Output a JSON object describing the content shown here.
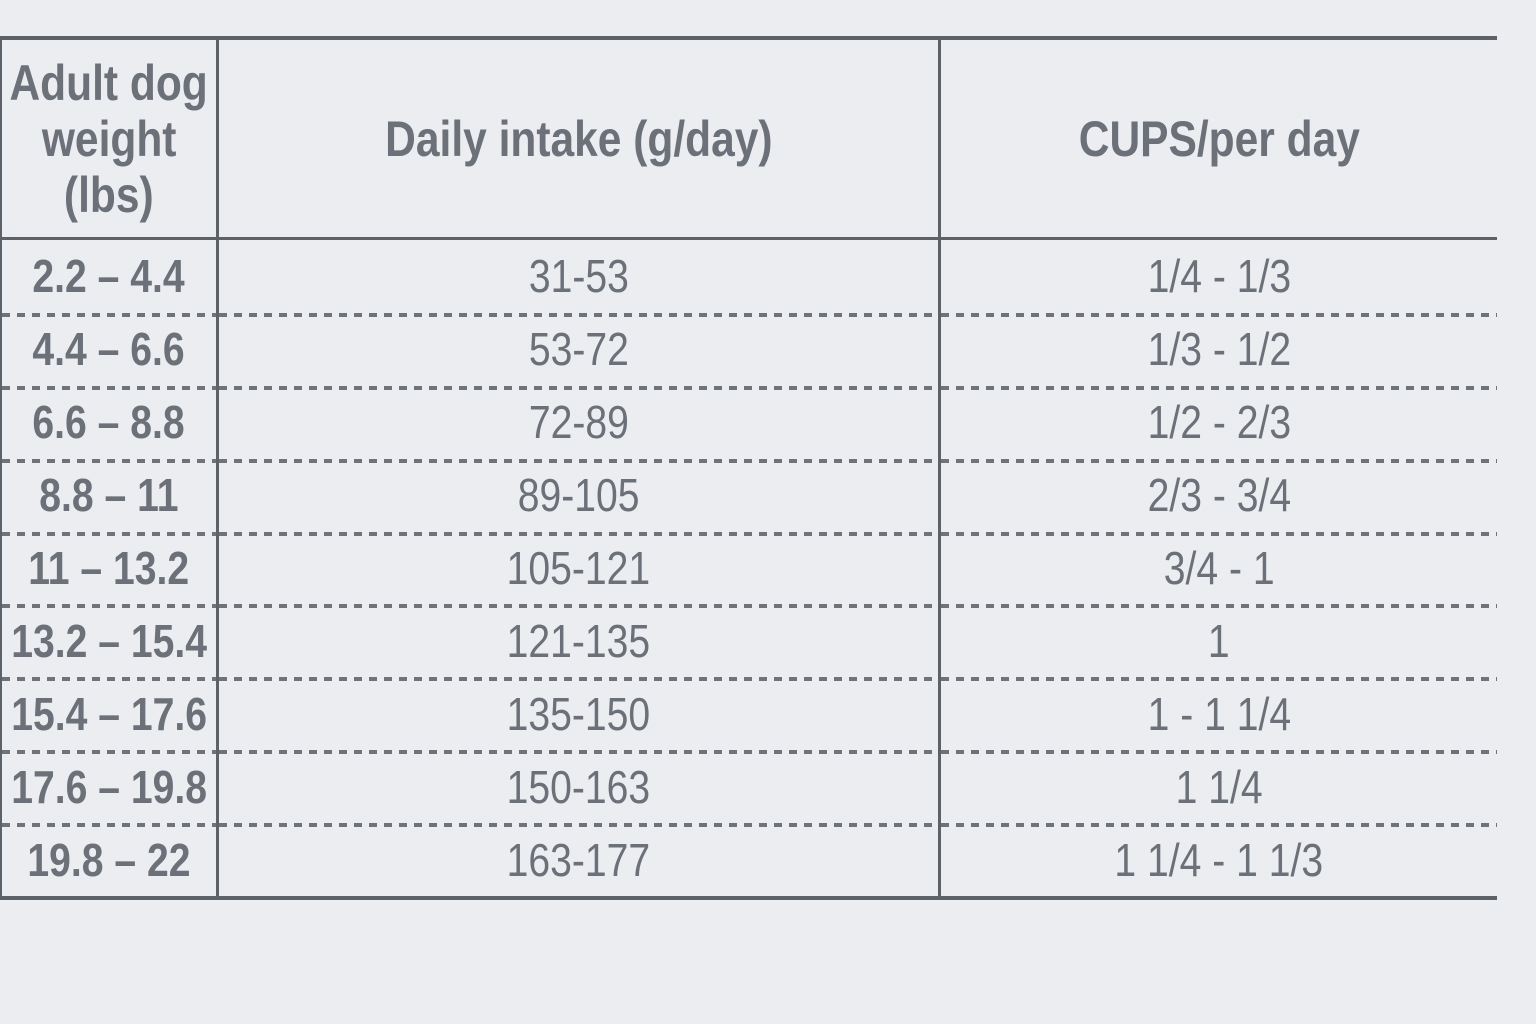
{
  "colors": {
    "background": "#ebedf0",
    "rule_line": "#5d6268",
    "dotted_line": "#6e737a",
    "text": "#6b7079"
  },
  "table": {
    "header": {
      "weight_lines": [
        "Adult dog",
        "weight",
        "(lbs)"
      ],
      "weight_full": "Adult dog weight (lbs)",
      "intake": "Daily intake (g/day)",
      "cups": "CUPS/per day"
    },
    "rows": [
      {
        "weight": "2.2 – 4.4",
        "grams": "31-53",
        "cups": "1/4 - 1/3"
      },
      {
        "weight": "4.4 – 6.6",
        "grams": "53-72",
        "cups": "1/3 - 1/2"
      },
      {
        "weight": "6.6 – 8.8",
        "grams": "72-89",
        "cups": "1/2 - 2/3"
      },
      {
        "weight": "8.8 – 11",
        "grams": "89-105",
        "cups": "2/3 - 3/4"
      },
      {
        "weight": "11 – 13.2",
        "grams": "105-121",
        "cups": "3/4 - 1"
      },
      {
        "weight": "13.2 – 15.4",
        "grams": "121-135",
        "cups": "1"
      },
      {
        "weight": "15.4 – 17.6",
        "grams": "135-150",
        "cups": "1 - 1 1/4"
      },
      {
        "weight": "17.6 – 19.8",
        "grams": "150-163",
        "cups": "1 1/4"
      },
      {
        "weight": "19.8 – 22",
        "grams": "163-177",
        "cups": "1 1/4 - 1 1/3"
      }
    ]
  }
}
